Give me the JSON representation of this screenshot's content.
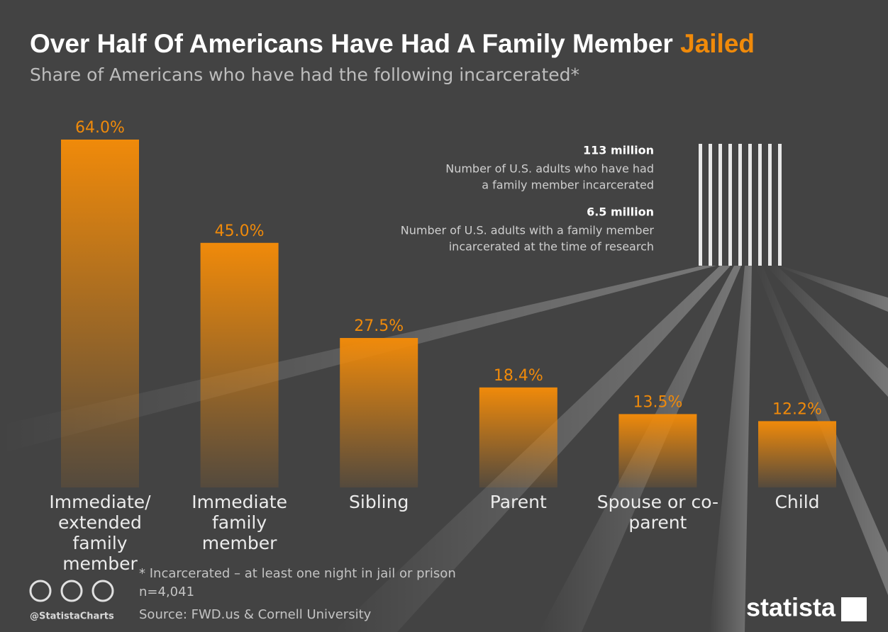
{
  "chart_data": {
    "type": "bar",
    "title": "Over Half Of Americans Have Had A Family Member",
    "title_highlight": "Jailed",
    "subtitle": "Share of Americans who have had the following incarcerated*",
    "categories": [
      "Immediate/ extended family member",
      "Immediate family member",
      "Sibling",
      "Parent",
      "Spouse or co-parent",
      "Child"
    ],
    "values": [
      64.0,
      45.0,
      27.5,
      18.4,
      13.5,
      12.2
    ],
    "value_labels": [
      "64.0%",
      "45.0%",
      "27.5%",
      "18.4%",
      "13.5%",
      "12.2%"
    ],
    "color": "#f08a0a",
    "annotations": [
      {
        "figure": "113 million",
        "text": [
          "Number of U.S. adults who have had",
          "a family member incarcerated"
        ]
      },
      {
        "figure": "6.5 million",
        "text": [
          "Number of U.S. adults with a family member",
          "incarcerated at the time of research"
        ]
      }
    ],
    "footnote": "* Incarcerated – at least one night in jail or prison",
    "sample": "n=4,041",
    "source": "Source: FWD.us & Cornell University",
    "handle": "@StatistaCharts",
    "brand": "statista"
  }
}
